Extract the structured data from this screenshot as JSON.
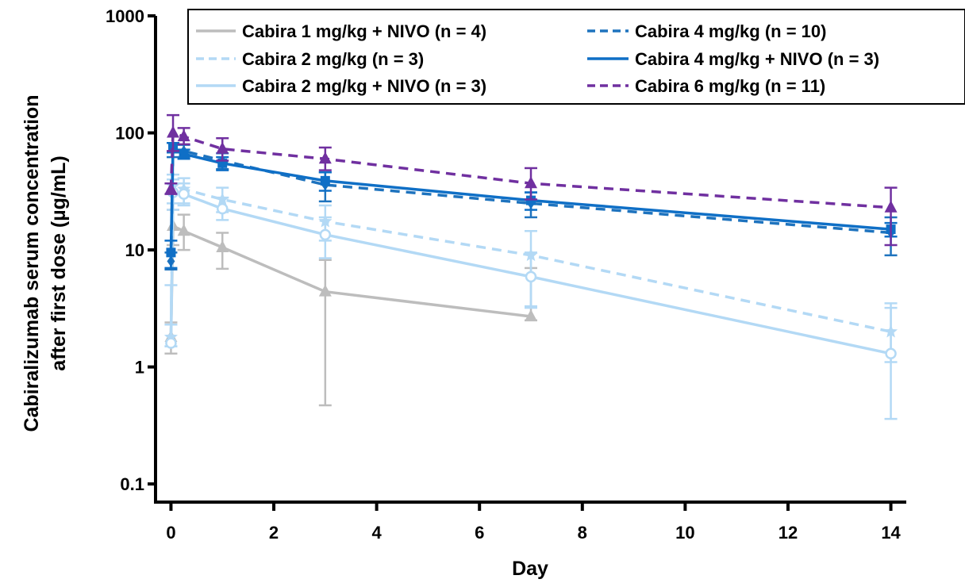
{
  "chart_data": {
    "type": "line",
    "xlabel": "Day",
    "ylabel_lines": [
      "Cabiralizumab serum concentration",
      "after first dose (µg/mL)"
    ],
    "xlim": [
      -0.3,
      14.3
    ],
    "ylim": [
      0.07,
      1000
    ],
    "yscale": "log",
    "xticks": [
      0,
      2,
      4,
      6,
      8,
      10,
      12,
      14
    ],
    "yticks": [
      0.1,
      1,
      10,
      100,
      1000
    ],
    "ytick_labels": [
      "0.1",
      "1",
      "10",
      "100",
      "1000"
    ],
    "grid": false,
    "legend_position": "top",
    "series": [
      {
        "name": "Cabira 1 mg/kg + NIVO (n = 4)",
        "color": "#bdbdbd",
        "dash": "solid",
        "marker": "triangle",
        "x": [
          0,
          0.04,
          0.25,
          1,
          3,
          7
        ],
        "y": [
          1.8,
          16,
          14.5,
          10.5,
          4.4,
          2.7
        ],
        "err_low": [
          1.3,
          11,
          10,
          6.9,
          0.47,
          2.5
        ],
        "err_high": [
          2.4,
          22,
          20,
          14,
          8.2,
          7.0
        ]
      },
      {
        "name": "Cabira 2 mg/kg (n = 3)",
        "color": "#b3d9f5",
        "dash": "dashed",
        "marker": "star",
        "x": [
          0,
          0.04,
          0.25,
          1,
          3,
          7,
          14
        ],
        "y": [
          1.8,
          35,
          33,
          27,
          17.5,
          9.0,
          2.0
        ],
        "err_low": [
          1.5,
          25,
          25,
          21,
          12,
          3.3,
          1.1
        ],
        "err_high": [
          2.3,
          44,
          41,
          34,
          24,
          14.5,
          3.5
        ]
      },
      {
        "name": "Cabira 2 mg/kg + NIVO (n = 3)",
        "color": "#b3d9f5",
        "dash": "solid",
        "marker": "circle",
        "x": [
          0,
          0.04,
          0.25,
          1,
          3,
          7,
          14
        ],
        "y": [
          1.6,
          31,
          30,
          22.5,
          13.5,
          5.9,
          1.3
        ],
        "err_low": [
          1.5,
          22,
          24,
          18,
          8.5,
          3.2,
          0.36
        ],
        "err_high": [
          5.0,
          40,
          37,
          28,
          19,
          9.5,
          3.2
        ]
      },
      {
        "name": "Cabira 4 mg/kg (n = 10)",
        "color": "#1e73be",
        "dash": "dashed",
        "marker": "diamond",
        "x": [
          0,
          0.04,
          0.25,
          1,
          3,
          7,
          14
        ],
        "y": [
          8.0,
          72,
          70,
          58,
          36,
          25,
          14
        ],
        "err_low": [
          6.8,
          62,
          62,
          49,
          26,
          19,
          9.0
        ],
        "err_high": [
          9.5,
          82,
          79,
          67,
          46,
          31,
          19
        ]
      },
      {
        "name": "Cabira 4 mg/kg + NIVO (n = 3)",
        "color": "#0f6fc6",
        "dash": "solid",
        "marker": "square",
        "x": [
          0,
          0.04,
          0.25,
          1,
          3,
          7,
          14
        ],
        "y": [
          9.5,
          75,
          66,
          55,
          39,
          26.5,
          15
        ],
        "err_low": [
          7.0,
          68,
          60,
          48,
          32,
          22,
          13
        ],
        "err_high": [
          12,
          82,
          72,
          62,
          46,
          31,
          17
        ]
      },
      {
        "name": "Cabira 6 mg/kg (n = 11)",
        "color": "#7030a0",
        "dash": "dashed",
        "marker": "triangle",
        "x": [
          0,
          0.04,
          0.25,
          1,
          3,
          7,
          14
        ],
        "y": [
          33,
          100,
          93,
          73,
          60,
          37,
          23
        ],
        "err_low": [
          30,
          70,
          80,
          58,
          48,
          27,
          11
        ],
        "err_high": [
          37,
          142,
          110,
          90,
          75,
          50,
          34
        ]
      }
    ]
  }
}
